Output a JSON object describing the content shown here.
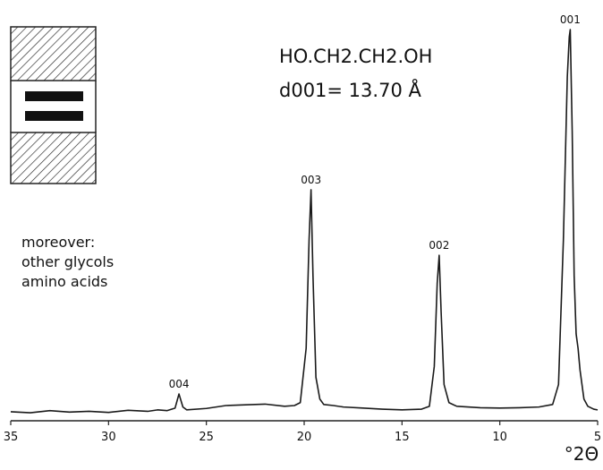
{
  "chart_data": {
    "type": "line",
    "title": "HO.CH2.CH2.OH",
    "subtitle": "d001= 13.70 Å",
    "x_label": "°2Θ",
    "annotations": [
      "moreover:",
      "other glycols",
      "amino acids"
    ],
    "peak_labels": [
      {
        "text": "004",
        "x": 26.4
      },
      {
        "text": "003",
        "x": 19.65
      },
      {
        "text": "002",
        "x": 13.1
      },
      {
        "text": "001",
        "x": 6.4
      }
    ],
    "xlim": [
      35,
      5
    ],
    "xticks": [
      35,
      30,
      25,
      20,
      15,
      10,
      5
    ],
    "ylim": [
      0,
      110
    ],
    "series": [
      {
        "name": "HO.CH2.CH2.OH",
        "color": "#1a1a1a",
        "x": [
          35,
          34,
          33,
          32,
          31,
          30,
          29,
          28,
          27.5,
          27,
          26.6,
          26.4,
          26.2,
          26,
          25,
          24,
          23,
          22,
          21,
          20.5,
          20.2,
          19.9,
          19.75,
          19.65,
          19.55,
          19.4,
          19.2,
          19,
          18.5,
          18,
          17,
          16,
          15,
          14,
          13.6,
          13.35,
          13.2,
          13.1,
          13.0,
          12.85,
          12.6,
          12.2,
          11,
          10,
          9,
          8,
          7.3,
          7.0,
          6.75,
          6.55,
          6.45,
          6.4,
          6.3,
          6.2,
          6.1,
          6.0,
          5.9,
          5.7,
          5.5,
          5.2,
          5
        ],
        "values": [
          2.5,
          2.2,
          2.8,
          2.4,
          2.6,
          2.3,
          2.9,
          2.6,
          3.0,
          2.8,
          3.5,
          7.4,
          3.8,
          3.0,
          3.4,
          4.2,
          4.4,
          4.6,
          4.0,
          4.2,
          5.0,
          20,
          50,
          63.8,
          40,
          12,
          6,
          4.5,
          4.2,
          3.8,
          3.5,
          3.2,
          3.0,
          3.2,
          4.0,
          15,
          38,
          45.7,
          30,
          10,
          5,
          4,
          3.6,
          3.5,
          3.6,
          3.8,
          4.5,
          10,
          50,
          95,
          106,
          108,
          80,
          40,
          24,
          20,
          14,
          6,
          4,
          3.2,
          3.0
        ]
      }
    ]
  }
}
